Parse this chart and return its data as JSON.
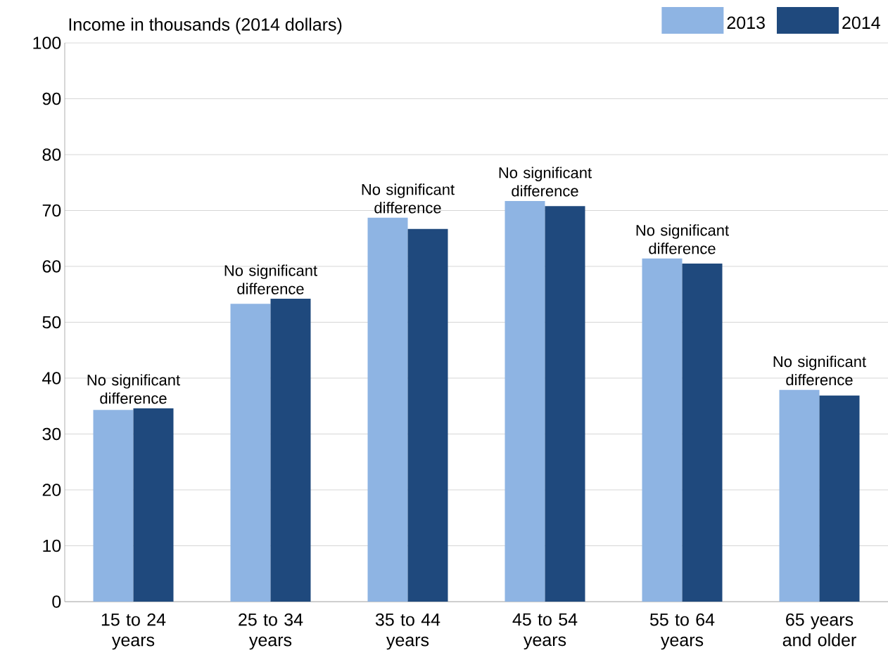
{
  "chart_data": {
    "type": "bar",
    "ylabel": "Income in thousands (2014 dollars)",
    "categories": [
      "15 to 24 years",
      "25 to 34 years",
      "35 to 44 years",
      "45 to 54 years",
      "55 to 64 years",
      "65 years and older"
    ],
    "series": [
      {
        "name": "2013",
        "color": "#8eb4e3",
        "values": [
          34.3,
          53.3,
          68.7,
          71.7,
          61.4,
          37.9
        ]
      },
      {
        "name": "2014",
        "color": "#1f497d",
        "values": [
          34.6,
          54.2,
          66.7,
          70.8,
          60.5,
          36.9
        ]
      }
    ],
    "ylim": [
      0,
      100
    ],
    "yticks": [
      0,
      10,
      20,
      30,
      40,
      50,
      60,
      70,
      80,
      90,
      100
    ],
    "grid": "y",
    "legend": "top right",
    "annotations": [
      {
        "text": "No significant difference",
        "x": "15 to 24 years",
        "y": 34.6
      },
      {
        "text": "No significant difference",
        "x": "25 to 34 years",
        "y": 54.2
      },
      {
        "text": "No significant difference",
        "x": "35 to 44 years",
        "y": 68.7
      },
      {
        "text": "No significant difference",
        "x": "45 to 54 years",
        "y": 71.7
      },
      {
        "text": "No significant difference",
        "x": "55 to 64 years",
        "y": 61.4
      },
      {
        "text": "No significant difference",
        "x": "65 years and older",
        "y": 37.9
      }
    ]
  }
}
